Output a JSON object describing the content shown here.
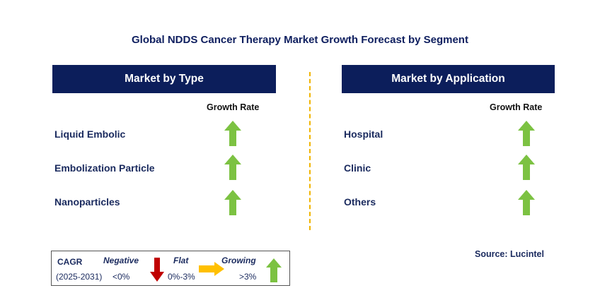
{
  "title": "Global NDDS Cancer Therapy Market Growth Forecast by Segment",
  "left_panel": {
    "header": "Market by Type",
    "column_header": "Growth Rate",
    "rows": [
      {
        "label": "Liquid Embolic",
        "trend": "growing"
      },
      {
        "label": "Embolization Particle",
        "trend": "growing"
      },
      {
        "label": "Nanoparticles",
        "trend": "growing"
      }
    ]
  },
  "right_panel": {
    "header": "Market by Application",
    "column_header": "Growth Rate",
    "rows": [
      {
        "label": "Hospital",
        "trend": "growing"
      },
      {
        "label": "Clinic",
        "trend": "growing"
      },
      {
        "label": "Others",
        "trend": "growing"
      }
    ]
  },
  "legend": {
    "cagr_label": "CAGR",
    "period": "(2025-2031)",
    "negative": {
      "label": "Negative",
      "range": "<0%"
    },
    "flat": {
      "label": "Flat",
      "range": "0%-3%"
    },
    "growing": {
      "label": "Growing",
      "range": ">3%"
    }
  },
  "source": "Source: Lucintel",
  "colors": {
    "header_bg": "#0c1e5b",
    "growing": "#7cc242",
    "negative": "#c00000",
    "flat": "#ffc000",
    "divider": "#f0b400"
  }
}
